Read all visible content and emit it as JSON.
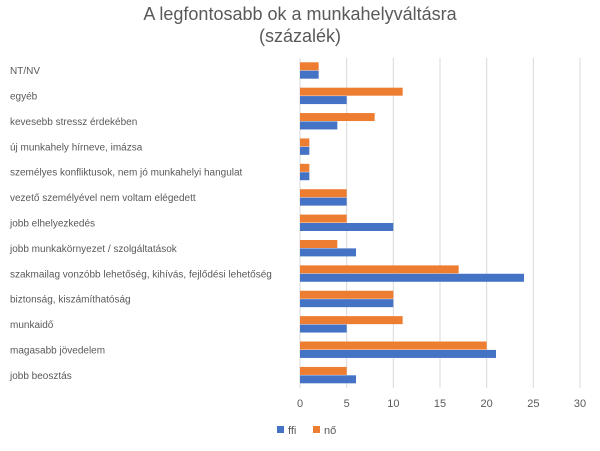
{
  "chart_data": {
    "type": "bar",
    "orientation": "horizontal",
    "title": "A legfontosabb ok a munkahelyváltásra",
    "subtitle": "(százalék)",
    "categories": [
      "NT/NV",
      "egyéb",
      "kevesebb stressz érdekében",
      "új munkahely hírneve, imázsa",
      "személyes konfliktusok, nem jó munkahelyi hangulat",
      "vezető személyével nem voltam elégedett",
      "jobb elhelyezkedés",
      "jobb munkakörnyezet / szolgáltatások",
      "szakmailag vonzóbb lehetőség, kihívás, fejlődési lehetőség",
      "biztonság, kiszámíthatóság",
      "munkaidő",
      "magasabb jövedelem",
      "jobb beosztás"
    ],
    "series": [
      {
        "name": "ffi",
        "color": "#4472C4",
        "values": [
          2,
          5,
          4,
          1,
          1,
          5,
          10,
          6,
          24,
          10,
          5,
          21,
          6
        ]
      },
      {
        "name": "nő",
        "color": "#ED7D31",
        "values": [
          2,
          11,
          8,
          1,
          1,
          5,
          5,
          4,
          17,
          10,
          11,
          20,
          5
        ]
      }
    ],
    "xlim": [
      0,
      30
    ],
    "xticks": [
      0,
      5,
      10,
      15,
      20,
      25,
      30
    ],
    "grid": true,
    "legend": "bottom"
  }
}
